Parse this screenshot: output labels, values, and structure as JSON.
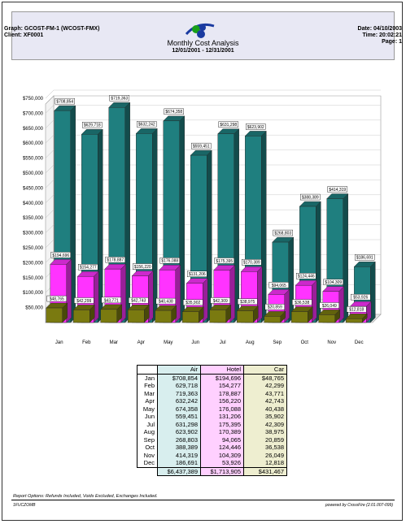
{
  "header": {
    "graph": "Graph: GCOST-FM-1 (WCOST-FMX)",
    "client": "Client: XF0001",
    "date": "Date: 04/10/2003",
    "time": "Time: 20:02:21",
    "page": "Page: 1",
    "title": "Monthly Cost Analysis",
    "range": "12/01/2001 - 12/31/2001"
  },
  "colors": {
    "air": "#1f7f7f",
    "hotel": "#ff33ff",
    "car": "#7a7a10"
  },
  "chart_data": {
    "type": "bar",
    "categories": [
      "Jan",
      "Feb",
      "Mar",
      "Apr",
      "May",
      "Jun",
      "Jul",
      "Aug",
      "Sep",
      "Oct",
      "Nov",
      "Dec"
    ],
    "ylim": [
      0,
      750000
    ],
    "yticks": [
      "$50,000",
      "$100,000",
      "$150,000",
      "$200,000",
      "$250,000",
      "$300,000",
      "$350,000",
      "$400,000",
      "$450,000",
      "$500,000",
      "$550,000",
      "$600,000",
      "$650,000",
      "$700,000",
      "$750,000"
    ],
    "series": [
      {
        "name": "Air",
        "values": [
          708854,
          629718,
          719363,
          632242,
          674358,
          559451,
          631298,
          623902,
          268803,
          388389,
          414319,
          186691
        ],
        "labels": [
          "$708,854",
          "$629,718",
          "$719,363",
          "$632,242",
          "$674,358",
          "$559,451",
          "$631,298",
          "$623,902",
          "$268,803",
          "$388,389",
          "$414,319",
          "$186,691"
        ]
      },
      {
        "name": "Hotel",
        "values": [
          194696,
          154277,
          178887,
          156220,
          176088,
          131206,
          175395,
          170389,
          94065,
          124446,
          104309,
          53926
        ],
        "labels": [
          "$194,696",
          "$154,277",
          "$178,887",
          "$156,220",
          "$176,088",
          "$131,206",
          "$175,395",
          "$170,389",
          "$94,065",
          "$124,446",
          "$104,309",
          "$53,926"
        ]
      },
      {
        "name": "Car",
        "values": [
          48765,
          42299,
          43771,
          42743,
          40438,
          35902,
          42309,
          38975,
          20859,
          36538,
          26049,
          12818
        ],
        "labels": [
          "$48,765",
          "$42,299",
          "$43,771",
          "$42,743",
          "$40,438",
          "$35,902",
          "$42,309",
          "$38,975",
          "$20,859",
          "$36,538",
          "$26,049",
          "$12,818"
        ]
      }
    ]
  },
  "table": {
    "headers": [
      "Air",
      "Hotel",
      "Car"
    ],
    "rows": [
      [
        "Jan",
        "$708,854",
        "$194,696",
        "$48,765"
      ],
      [
        "Feb",
        "629,718",
        "154,277",
        "42,299"
      ],
      [
        "Mar",
        "719,363",
        "178,887",
        "43,771"
      ],
      [
        "Apr",
        "632,242",
        "156,220",
        "42,743"
      ],
      [
        "May",
        "674,358",
        "176,088",
        "40,438"
      ],
      [
        "Jun",
        "559,451",
        "131,206",
        "35,902"
      ],
      [
        "Jul",
        "631,298",
        "175,395",
        "42,309"
      ],
      [
        "Aug",
        "623,902",
        "170,389",
        "38,975"
      ],
      [
        "Sep",
        "268,803",
        "94,065",
        "20,859"
      ],
      [
        "Oct",
        "388,389",
        "124,446",
        "36,538"
      ],
      [
        "Nov",
        "414,319",
        "104,309",
        "26,049"
      ],
      [
        "Dec",
        "186,691",
        "53,926",
        "12,818"
      ]
    ],
    "totals": [
      "$6,437,389",
      "$1,713,905",
      "$431,467"
    ]
  },
  "footer": {
    "options": "Report Options: Refunds Included, Voids Excluded, Exchanges Included.",
    "left": "1FUCZOMB",
    "right": "powered by CrossFire (2.01.007-099)"
  }
}
